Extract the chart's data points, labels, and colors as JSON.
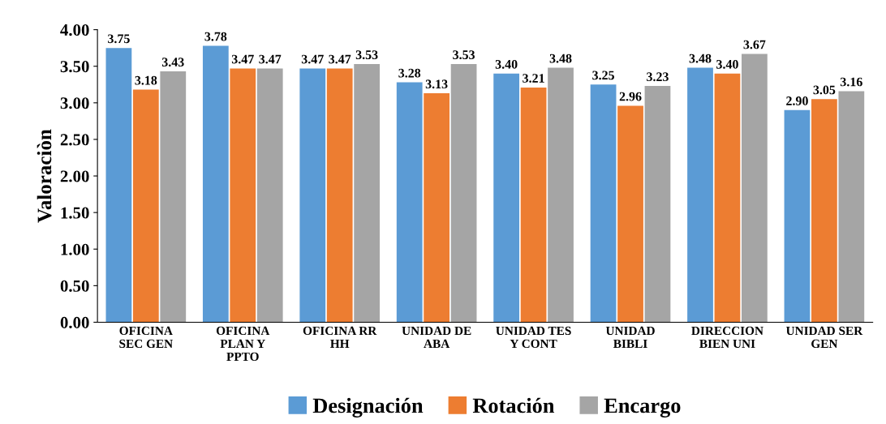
{
  "chart_data": {
    "type": "bar",
    "ylabel": "Valoraciòn",
    "categories": [
      "OFICINA\nSEC GEN",
      "OFICINA\nPLAN Y\nPPTO",
      "OFICINA RR\nHH",
      "UNIDAD DE\nABA",
      "UNIDAD TES\nY CONT",
      "UNIDAD\nBIBLI",
      "DIRECCION\nBIEN UNI",
      "UNIDAD SER\nGEN"
    ],
    "series": [
      {
        "name": "Designación",
        "color": "#5b9bd5",
        "values": [
          3.75,
          3.78,
          3.47,
          3.28,
          3.4,
          3.25,
          3.48,
          2.9
        ],
        "value_labels": [
          "3.75",
          "3.78",
          "3.47",
          "3.28",
          "3.40",
          "3.25",
          "3.48",
          "2.90"
        ]
      },
      {
        "name": "Rotación",
        "color": "#ed7d31",
        "values": [
          3.18,
          3.47,
          3.47,
          3.13,
          3.21,
          2.96,
          3.4,
          3.05
        ],
        "value_labels": [
          "3.18",
          "3.47",
          "3.47",
          "3.13",
          "3.21",
          "2.96",
          "3.40",
          "3.05"
        ]
      },
      {
        "name": "Encargo",
        "color": "#a5a5a5",
        "values": [
          3.43,
          3.47,
          3.53,
          3.53,
          3.48,
          3.23,
          3.67,
          3.16
        ],
        "value_labels": [
          "3.43",
          "3.47",
          "3.53",
          "3.53",
          "3.48",
          "3.23",
          "3.67",
          "3.16"
        ]
      }
    ],
    "ylim": [
      0,
      4
    ],
    "yticks": [
      {
        "value": 0,
        "label": "0.00"
      },
      {
        "value": 0.5,
        "label": "0.50"
      },
      {
        "value": 1,
        "label": "1.00"
      },
      {
        "value": 1.5,
        "label": "1.50"
      },
      {
        "value": 2,
        "label": "2.00"
      },
      {
        "value": 2.5,
        "label": "2.50"
      },
      {
        "value": 3,
        "label": "3.00"
      },
      {
        "value": 3.5,
        "label": "3.50"
      },
      {
        "value": 4,
        "label": "4.00"
      }
    ],
    "legend": "bottom"
  }
}
